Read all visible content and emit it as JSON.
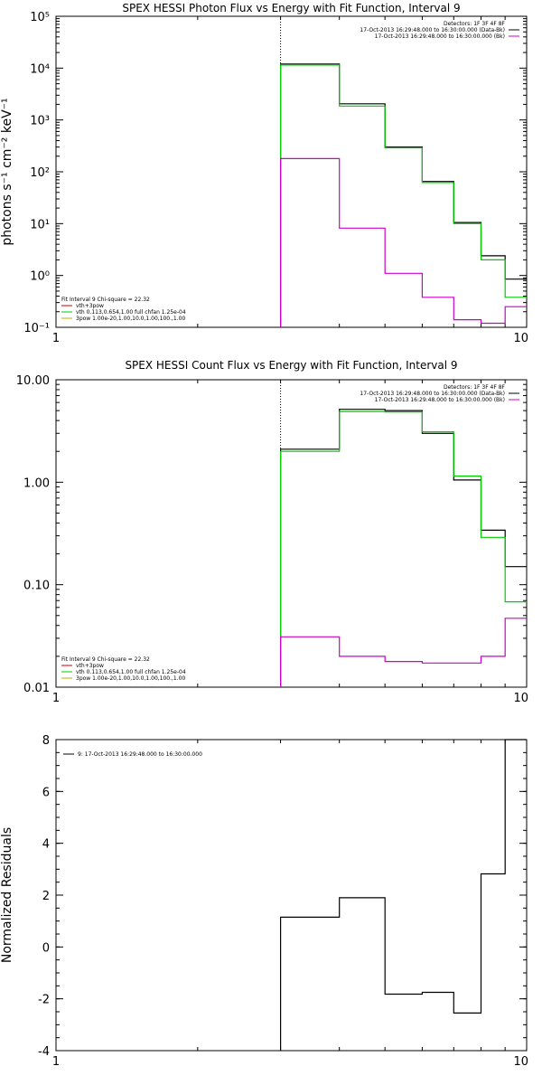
{
  "chart_data": [
    {
      "type": "line",
      "title": "SPEX HESSI Photon Flux vs Energy with Fit Function, Interval 9",
      "xlabel": "",
      "ylabel": "photons s⁻¹ cm⁻² keV⁻¹",
      "xscale": "log",
      "yscale": "log",
      "xlim": [
        1,
        10
      ],
      "ylim": [
        0.1,
        100000
      ],
      "x_ticks": [
        1,
        10
      ],
      "x_tick_labels": [
        "1",
        "10"
      ],
      "y_ticks": [
        0.1,
        1,
        10,
        100,
        1000,
        10000,
        100000
      ],
      "y_tick_labels": [
        "10⁻¹",
        "10⁰",
        "10¹",
        "10²",
        "10³",
        "10⁴",
        "10⁵"
      ],
      "vline_x": 3.0,
      "bin_edges": [
        3.0,
        4.0,
        5.0,
        6.0,
        7.0,
        8.0,
        9.0,
        10.0
      ],
      "legend_top_right": [
        {
          "text": "Detectors: 1F 3F 4F 8F",
          "color": ""
        },
        {
          "text": "17-Oct-2013 16:29:48.000 to 16:30:00.000 (Data-Bk)",
          "color": "#000000"
        },
        {
          "text": "17-Oct-2013 16:29:48.000 to 16:30:00.000 (Bk)",
          "color": "#cc00cc"
        }
      ],
      "legend_bottom_left": [
        {
          "text": "Fit Interval 9   Chi-square = 22.32",
          "color": ""
        },
        {
          "text": "vth+3pow",
          "color": "#cc0000"
        },
        {
          "text": "vth 0.113,0.654,1.00  full chfan 1.25e-04",
          "color": "#00cc00"
        },
        {
          "text": "3pow 1.00e-20,1.00,10.0,1.00,100.,1.00",
          "color": "#ccaa00"
        }
      ],
      "series": [
        {
          "name": "17-Oct-2013 16:29:48.000 to 16:30:00.000 (Data-Bk)",
          "color": "#000000",
          "values": [
            12000,
            2050,
            300,
            65,
            10.5,
            2.4,
            0.85
          ]
        },
        {
          "name": "vth 0.113,0.654,1.00  full chfan 1.25e-04",
          "color": "#00cc00",
          "values": [
            11500,
            1850,
            290,
            62,
            10,
            2.0,
            0.38
          ]
        },
        {
          "name": "17-Oct-2013 16:29:48.000 to 16:30:00.000 (Bk)",
          "color": "#cc00cc",
          "values": [
            180,
            8.2,
            1.1,
            0.38,
            0.14,
            0.12,
            0.25
          ]
        }
      ]
    },
    {
      "type": "line",
      "title": "SPEX HESSI Count Flux vs Energy with Fit Function, Interval 9",
      "xlabel": "",
      "ylabel": "",
      "xscale": "log",
      "yscale": "log",
      "xlim": [
        1,
        10
      ],
      "ylim": [
        0.01,
        10
      ],
      "x_ticks": [
        1,
        10
      ],
      "x_tick_labels": [
        "1",
        "10"
      ],
      "y_ticks": [
        0.01,
        0.1,
        1,
        10
      ],
      "y_tick_labels": [
        "0.01",
        "0.10",
        "1.00",
        "10.00"
      ],
      "vline_x": 3.0,
      "bin_edges": [
        3.0,
        4.0,
        5.0,
        6.0,
        7.0,
        8.0,
        9.0,
        10.0
      ],
      "legend_top_right": [
        {
          "text": "Detectors: 1F 3F 4F 8F",
          "color": ""
        },
        {
          "text": "17-Oct-2013 16:29:48.000 to 16:30:00.000 (Data-Bk)",
          "color": "#000000"
        },
        {
          "text": "17-Oct-2013 16:29:48.000 to 16:30:00.000 (Bk)",
          "color": "#cc00cc"
        }
      ],
      "legend_bottom_left": [
        {
          "text": "Fit Interval 9   Chi-square = 22.32",
          "color": ""
        },
        {
          "text": "vth+3pow",
          "color": "#cc0000"
        },
        {
          "text": "vth 0.113,0.654,1.00  full chfan 1.25e-04",
          "color": "#00cc00"
        },
        {
          "text": "3pow 1.00e-20,1.00,10.0,1.00,100.,1.00",
          "color": "#ccaa00"
        }
      ],
      "series": [
        {
          "name": "17-Oct-2013 16:29:48.000 to 16:30:00.000 (Data-Bk)",
          "color": "#000000",
          "values": [
            2.1,
            5.15,
            5.0,
            3.0,
            1.05,
            0.34,
            0.15
          ]
        },
        {
          "name": "vth 0.113,0.654,1.00  full chfan 1.25e-04",
          "color": "#00cc00",
          "values": [
            2.0,
            4.9,
            4.85,
            3.1,
            1.15,
            0.29,
            0.068
          ]
        },
        {
          "name": "17-Oct-2013 16:29:48.000 to 16:30:00.000 (Bk)",
          "color": "#cc00cc",
          "values": [
            0.031,
            0.02,
            0.0178,
            0.0172,
            0.0172,
            0.02,
            0.047
          ]
        }
      ]
    },
    {
      "type": "line",
      "title": "",
      "xlabel": "",
      "ylabel": "Normalized Residuals",
      "xscale": "log",
      "yscale": "linear",
      "xlim": [
        1,
        10
      ],
      "ylim": [
        -4,
        8
      ],
      "x_ticks": [
        1,
        10
      ],
      "x_tick_labels": [
        "1",
        "10"
      ],
      "y_ticks": [
        -4,
        -2,
        0,
        2,
        4,
        6,
        8
      ],
      "y_tick_labels": [
        "-4",
        "-2",
        "0",
        "2",
        "4",
        "6",
        "8"
      ],
      "bin_edges": [
        3.0,
        4.0,
        5.0,
        6.0,
        7.0,
        8.0,
        9.0,
        10.0
      ],
      "legend_top_left": [
        {
          "text": "9: 17-Oct-2013 16:29:48.000 to 16:30:00.000",
          "color": "#000000"
        }
      ],
      "series": [
        {
          "name": "9: 17-Oct-2013 16:29:48.000 to 16:30:00.000",
          "color": "#000000",
          "values": [
            1.15,
            1.9,
            -1.82,
            -1.75,
            -2.55,
            2.82,
            8.0
          ]
        }
      ]
    }
  ]
}
